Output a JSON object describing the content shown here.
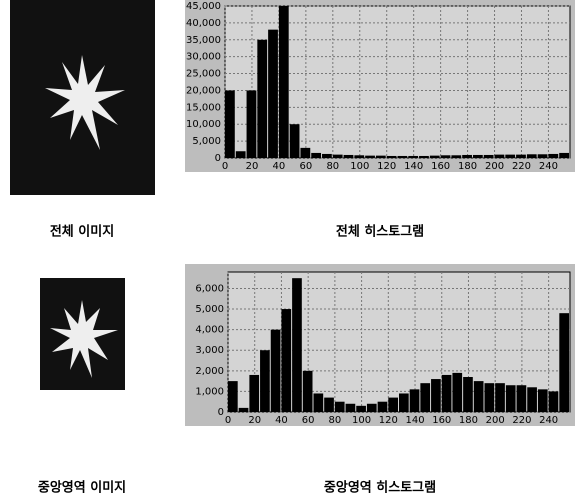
{
  "images": [
    {
      "caption": "전체 이미지"
    },
    {
      "caption": "중앙영역 이미지"
    }
  ],
  "chart_data": [
    {
      "type": "histogram",
      "title": "전체 히스토그램",
      "bins": [
        0,
        8,
        16,
        24,
        32,
        40,
        48,
        56,
        64,
        72,
        80,
        88,
        96,
        104,
        112,
        120,
        128,
        136,
        144,
        152,
        160,
        168,
        176,
        184,
        192,
        200,
        208,
        216,
        224,
        232,
        240,
        248,
        256
      ],
      "values": [
        20000,
        2000,
        20000,
        35000,
        38000,
        45000,
        10000,
        3000,
        1500,
        1200,
        1000,
        900,
        800,
        700,
        700,
        600,
        600,
        600,
        600,
        700,
        800,
        800,
        900,
        900,
        900,
        1000,
        1000,
        1000,
        1100,
        1100,
        1200,
        1500
      ],
      "color": "#000000",
      "xlim": [
        0,
        256
      ],
      "ylim": [
        0,
        45000
      ],
      "xticks": [
        0,
        20,
        40,
        60,
        80,
        100,
        120,
        140,
        160,
        180,
        200,
        220,
        240
      ],
      "yticks": [
        0,
        {
          "value": 5000,
          "label": "5,000"
        },
        {
          "value": 10000,
          "label": "10,000"
        },
        {
          "value": 15000,
          "label": "15,000"
        },
        {
          "value": 20000,
          "label": "20,000"
        },
        {
          "value": 25000,
          "label": "25,000"
        },
        {
          "value": 30000,
          "label": "30,000"
        },
        {
          "value": 35000,
          "label": "35,000"
        },
        {
          "value": 40000,
          "label": "40,000"
        },
        {
          "value": 45000,
          "label": "45,000"
        }
      ],
      "grid": true
    },
    {
      "type": "histogram",
      "title": "중앙영역 히스토그램",
      "bins": [
        0,
        8,
        16,
        24,
        32,
        40,
        48,
        56,
        64,
        72,
        80,
        88,
        96,
        104,
        112,
        120,
        128,
        136,
        144,
        152,
        160,
        168,
        176,
        184,
        192,
        200,
        208,
        216,
        224,
        232,
        240,
        248,
        256
      ],
      "values": [
        1500,
        200,
        1800,
        3000,
        4000,
        5000,
        6500,
        2000,
        900,
        700,
        500,
        400,
        300,
        400,
        500,
        700,
        900,
        1100,
        1400,
        1600,
        1800,
        1900,
        1700,
        1500,
        1400,
        1400,
        1300,
        1300,
        1200,
        1100,
        1000,
        4800
      ],
      "color": "#000000",
      "xlim": [
        0,
        256
      ],
      "ylim": [
        0,
        6800
      ],
      "xticks": [
        0,
        20,
        40,
        60,
        80,
        100,
        120,
        140,
        160,
        180,
        200,
        220,
        240
      ],
      "yticks": [
        0,
        {
          "value": 1000,
          "label": "1,000"
        },
        {
          "value": 2000,
          "label": "2,000"
        },
        {
          "value": 3000,
          "label": "3,000"
        },
        {
          "value": 4000,
          "label": "4,000"
        },
        {
          "value": 5000,
          "label": "5,000"
        },
        {
          "value": 6000,
          "label": "6,000"
        }
      ],
      "grid": true
    }
  ]
}
